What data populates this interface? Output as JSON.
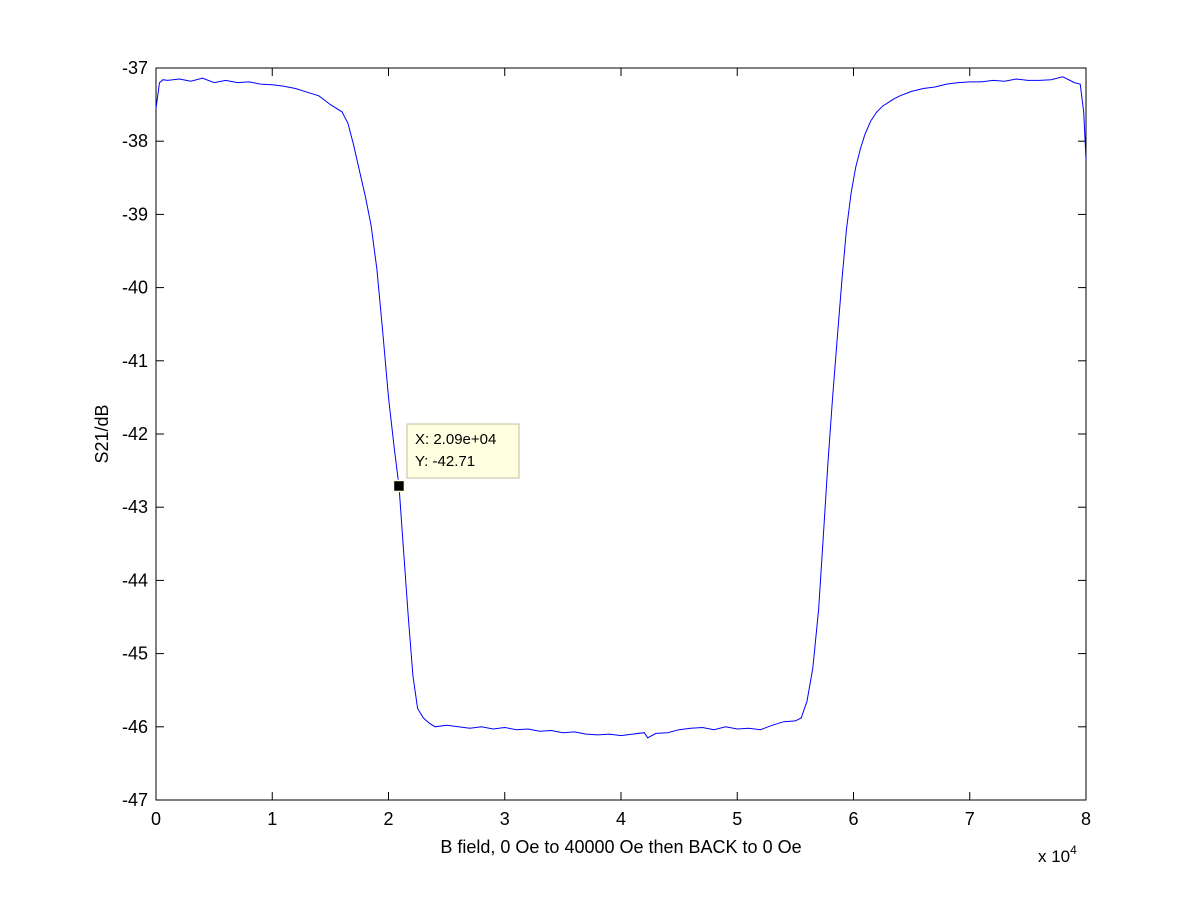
{
  "chart_data": {
    "type": "line",
    "title": "",
    "xlabel": "B field, 0 Oe to 40000 Oe then BACK to 0 Oe",
    "ylabel": "S21/dB",
    "x_multiplier_label": "x 10",
    "x_multiplier_exponent": "4",
    "xlim": [
      0,
      80000
    ],
    "ylim": [
      -47,
      -37
    ],
    "x_ticks": [
      0,
      10000,
      20000,
      30000,
      40000,
      50000,
      60000,
      70000,
      80000
    ],
    "x_tick_labels": [
      "0",
      "1",
      "2",
      "3",
      "4",
      "5",
      "6",
      "7",
      "8"
    ],
    "y_ticks": [
      -37,
      -38,
      -39,
      -40,
      -41,
      -42,
      -43,
      -44,
      -45,
      -46,
      -47
    ],
    "y_tick_labels": [
      "-37",
      "-38",
      "-39",
      "-40",
      "-41",
      "-42",
      "-43",
      "-44",
      "-45",
      "-46",
      "-47"
    ],
    "grid": false,
    "series": [
      {
        "color": "#0000ff",
        "x": [
          0,
          300,
          600,
          1000,
          2000,
          3000,
          4000,
          5000,
          6000,
          7000,
          8000,
          9000,
          10000,
          11000,
          12000,
          13000,
          14000,
          15000,
          16000,
          16500,
          17000,
          17500,
          18000,
          18500,
          19000,
          19500,
          20000,
          20500,
          20900,
          21300,
          21700,
          22100,
          22500,
          23000,
          23500,
          24000,
          25000,
          26000,
          27000,
          28000,
          29000,
          30000,
          31000,
          32000,
          33000,
          34000,
          35000,
          36000,
          37000,
          38000,
          39000,
          40000,
          41000,
          42000,
          42300,
          43000,
          44000,
          45000,
          46000,
          47000,
          48000,
          49000,
          50000,
          51000,
          52000,
          53000,
          54000,
          55000,
          55500,
          56000,
          56500,
          57000,
          57400,
          57800,
          58200,
          58600,
          59000,
          59400,
          59800,
          60200,
          60600,
          61000,
          61500,
          62000,
          62500,
          63000,
          63500,
          64000,
          65000,
          66000,
          67000,
          68000,
          69000,
          70000,
          71000,
          72000,
          73000,
          74000,
          75000,
          76000,
          77000,
          78000,
          79000,
          79500,
          79800,
          80000
        ],
        "y": [
          -37.55,
          -37.2,
          -37.16,
          -37.17,
          -37.15,
          -37.18,
          -37.14,
          -37.2,
          -37.17,
          -37.2,
          -37.19,
          -37.22,
          -37.23,
          -37.25,
          -37.28,
          -37.33,
          -37.38,
          -37.5,
          -37.6,
          -37.75,
          -38.05,
          -38.4,
          -38.75,
          -39.15,
          -39.75,
          -40.6,
          -41.5,
          -42.2,
          -42.71,
          -43.6,
          -44.5,
          -45.3,
          -45.75,
          -45.88,
          -45.95,
          -46.0,
          -45.98,
          -46.0,
          -46.02,
          -46.0,
          -46.03,
          -46.01,
          -46.04,
          -46.03,
          -46.06,
          -46.05,
          -46.08,
          -46.07,
          -46.1,
          -46.11,
          -46.1,
          -46.12,
          -46.1,
          -46.08,
          -46.15,
          -46.09,
          -46.08,
          -46.04,
          -46.02,
          -46.01,
          -46.04,
          -46.0,
          -46.03,
          -46.02,
          -46.04,
          -45.98,
          -45.93,
          -45.92,
          -45.88,
          -45.65,
          -45.2,
          -44.4,
          -43.4,
          -42.4,
          -41.5,
          -40.7,
          -39.9,
          -39.2,
          -38.7,
          -38.35,
          -38.1,
          -37.9,
          -37.72,
          -37.6,
          -37.52,
          -37.47,
          -37.42,
          -37.38,
          -37.32,
          -37.28,
          -37.26,
          -37.22,
          -37.2,
          -37.19,
          -37.19,
          -37.17,
          -37.18,
          -37.15,
          -37.17,
          -37.17,
          -37.16,
          -37.12,
          -37.2,
          -37.22,
          -37.6,
          -38.25
        ]
      }
    ],
    "datatip": {
      "x": 20900,
      "y": -42.71,
      "line1": "X: 2.09e+04",
      "line2": "Y: -42.71"
    }
  }
}
